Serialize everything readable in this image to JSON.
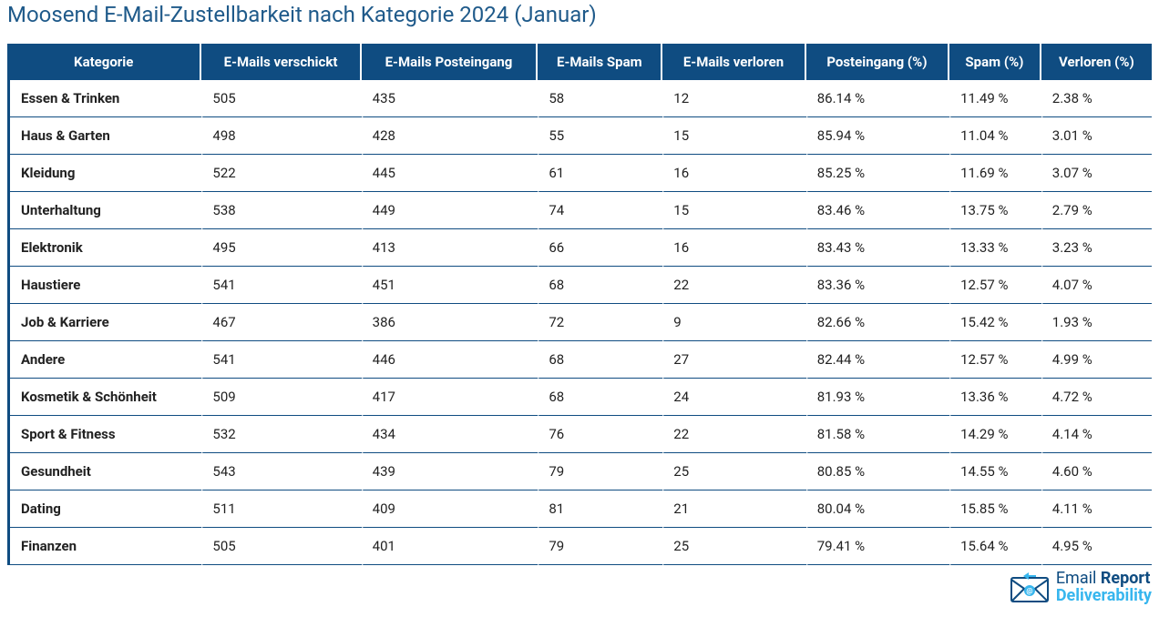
{
  "title": "Moosend E-Mail-Zustellbarkeit nach Kategorie 2024 (Januar)",
  "theme": {
    "header_bg": "#0f4c81",
    "header_fg": "#ffffff",
    "title_color": "#1f5a8a",
    "row_border_color": "#0f4c81",
    "first_col_left_border": "#0f4c81",
    "body_bg": "#ffffff",
    "text_color": "#222222",
    "logo_primary": "#0f4c81",
    "logo_accent": "#37b6ee",
    "title_fontsize": 24,
    "header_fontsize": 15,
    "cell_fontsize": 15
  },
  "columns": [
    "Kategorie",
    "E-Mails verschickt",
    "E-Mails Posteingang",
    "E-Mails Spam",
    "E-Mails verloren",
    "Posteingang (%)",
    "Spam (%)",
    "Verloren (%)"
  ],
  "rows": [
    [
      "Essen & Trinken",
      "505",
      "435",
      "58",
      "12",
      "86.14 %",
      "11.49 %",
      "2.38 %"
    ],
    [
      "Haus & Garten",
      "498",
      "428",
      "55",
      "15",
      "85.94 %",
      "11.04 %",
      "3.01 %"
    ],
    [
      "Kleidung",
      "522",
      "445",
      "61",
      "16",
      "85.25 %",
      "11.69 %",
      "3.07 %"
    ],
    [
      "Unterhaltung",
      "538",
      "449",
      "74",
      "15",
      "83.46 %",
      "13.75 %",
      "2.79 %"
    ],
    [
      "Elektronik",
      "495",
      "413",
      "66",
      "16",
      "83.43 %",
      "13.33 %",
      "3.23 %"
    ],
    [
      "Haustiere",
      "541",
      "451",
      "68",
      "22",
      "83.36 %",
      "12.57 %",
      "4.07 %"
    ],
    [
      "Job & Karriere",
      "467",
      "386",
      "72",
      "9",
      "82.66 %",
      "15.42 %",
      "1.93 %"
    ],
    [
      "Andere",
      "541",
      "446",
      "68",
      "27",
      "82.44 %",
      "12.57 %",
      "4.99 %"
    ],
    [
      "Kosmetik & Schönheit",
      "509",
      "417",
      "68",
      "24",
      "81.93 %",
      "13.36 %",
      "4.72 %"
    ],
    [
      "Sport & Fitness",
      "532",
      "434",
      "76",
      "22",
      "81.58 %",
      "14.29 %",
      "4.14 %"
    ],
    [
      "Gesundheit",
      "543",
      "439",
      "79",
      "25",
      "80.85 %",
      "14.55 %",
      "4.60 %"
    ],
    [
      "Dating",
      "511",
      "409",
      "81",
      "21",
      "80.04 %",
      "15.85 %",
      "4.11 %"
    ],
    [
      "Finanzen",
      "505",
      "401",
      "79",
      "25",
      "79.41 %",
      "15.64 %",
      "4.95 %"
    ]
  ],
  "footer_logo": {
    "line1_light": "Email",
    "line1_bold": "Report",
    "line2": "Deliverability"
  }
}
